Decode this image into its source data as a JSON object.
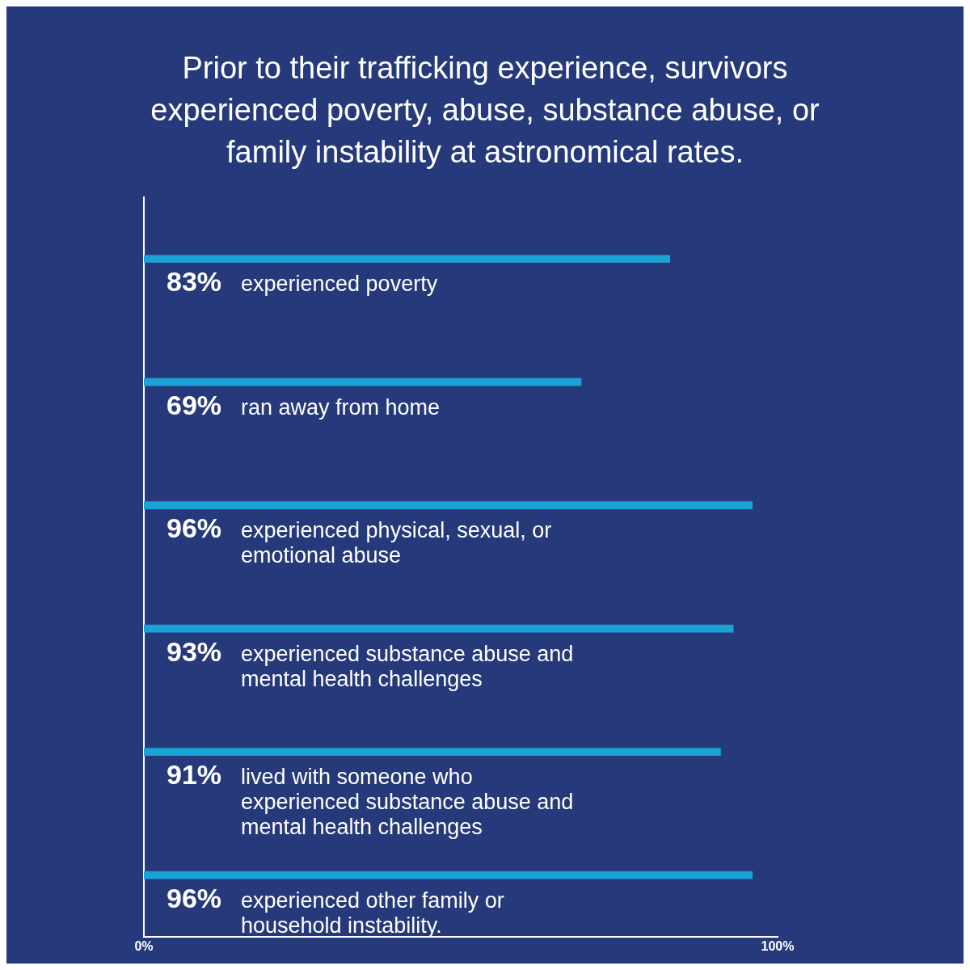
{
  "chart_data": {
    "type": "bar",
    "orientation": "horizontal",
    "title": "Prior to their trafficking experience, survivors experienced poverty, abuse, substance abuse, or family instability at astronomical rates.",
    "categories": [
      "experienced poverty",
      "ran away from home",
      "experienced physical, sexual, or emotional abuse",
      "experienced substance abuse and mental health challenges",
      "lived with someone who experienced substance abuse and mental health challenges",
      "experienced other family or household instability."
    ],
    "values": [
      83,
      69,
      96,
      93,
      91,
      96
    ],
    "value_labels": [
      "83%",
      "69%",
      "96%",
      "93%",
      "91%",
      "96%"
    ],
    "color": "#1ba3d6",
    "xlim": [
      0,
      100
    ],
    "xticks": [
      {
        "value": 0,
        "label": "0%"
      },
      {
        "value": 100,
        "label": "100%"
      }
    ],
    "grid": false,
    "legend": false
  }
}
